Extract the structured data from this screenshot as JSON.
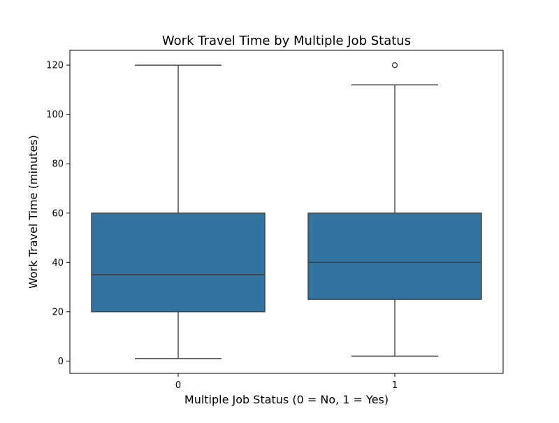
{
  "chart_data": {
    "type": "box",
    "title": "Work Travel Time by Multiple Job Status",
    "xlabel": "Multiple Job Status (0 = No, 1 = Yes)",
    "ylabel": "Work Travel Time (minutes)",
    "categories": [
      "0",
      "1"
    ],
    "ylim": [
      -5,
      126
    ],
    "yticks": [
      0,
      20,
      40,
      60,
      80,
      100,
      120
    ],
    "grid": false,
    "boxes": [
      {
        "category": "0",
        "whisker_low": 1,
        "q1": 20,
        "median": 35,
        "q3": 60,
        "whisker_high": 120,
        "outliers": []
      },
      {
        "category": "1",
        "whisker_low": 2,
        "q1": 25,
        "median": 40,
        "q3": 60,
        "whisker_high": 112,
        "outliers": [
          120
        ]
      }
    ],
    "colors": {
      "box_fill": "#3274a1",
      "line": "#3f3f3f",
      "axis": "#000000"
    }
  }
}
